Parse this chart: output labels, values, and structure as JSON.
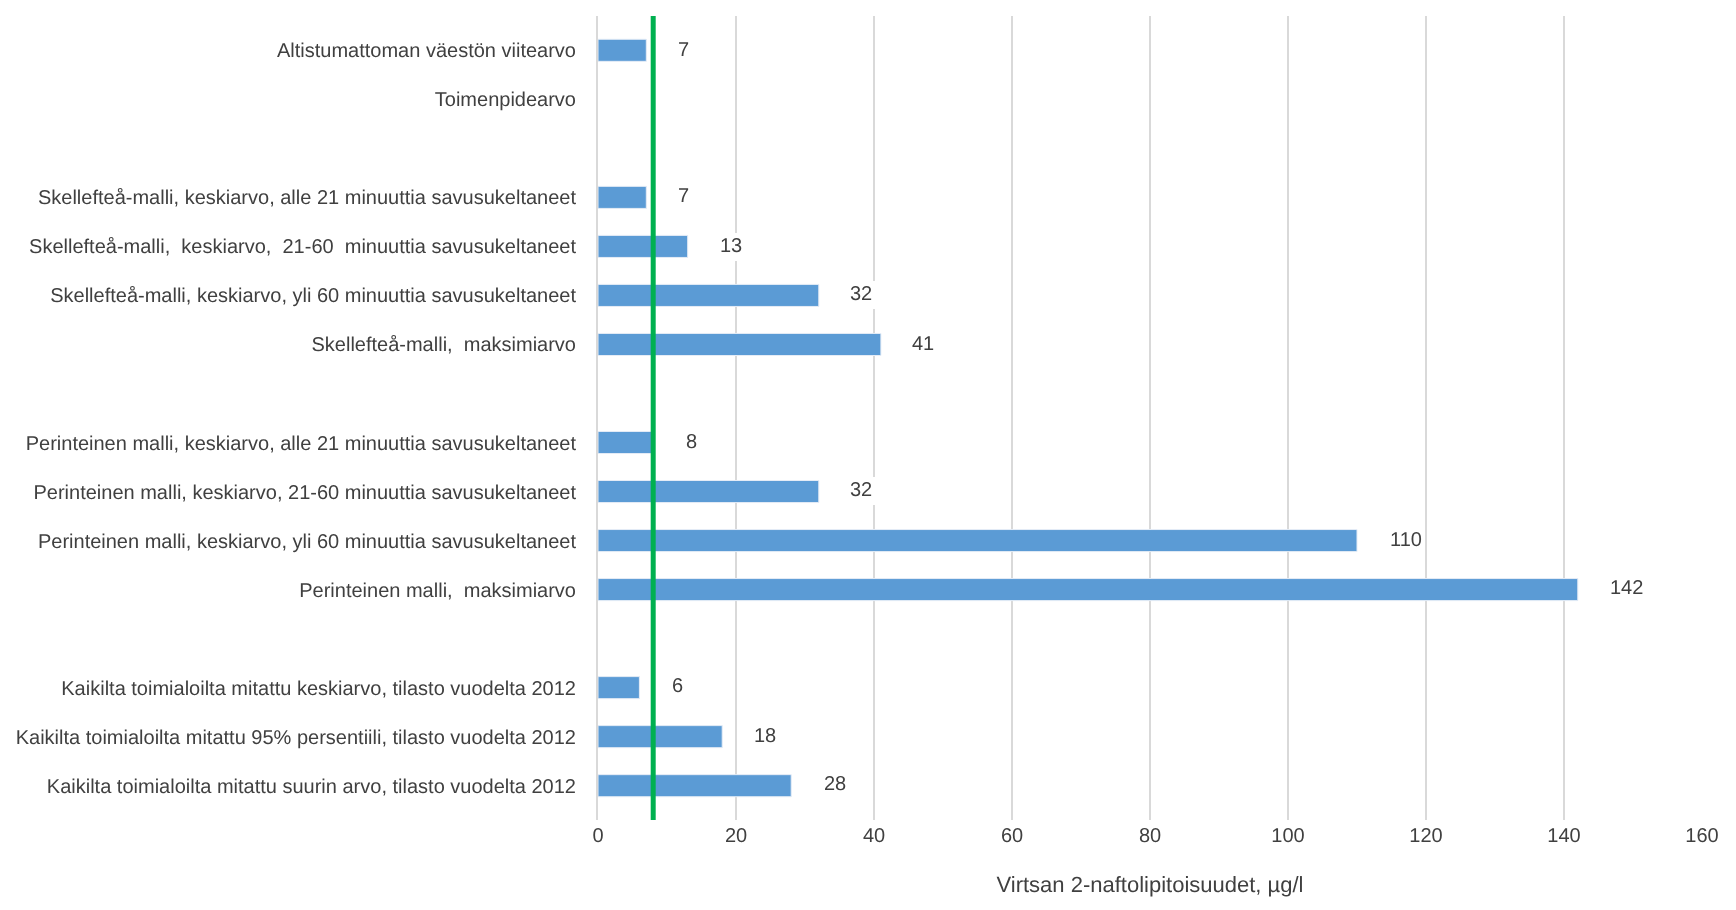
{
  "chart_data": {
    "type": "bar",
    "orientation": "horizontal",
    "xlabel": "Virtsan 2-naftolipitoisuudet, µg/l",
    "categories": [
      "Altistumattoman väestön viitearvo",
      "Toimenpidearvo",
      null,
      "Skellefteå-malli, keskiarvo, alle 21 minuuttia savusukeltaneet",
      "Skellefteå-malli,  keskiarvo,  21-60  minuuttia savusukeltaneet",
      "Skellefteå-malli, keskiarvo, yli 60 minuuttia savusukeltaneet",
      "Skellefteå-malli,  maksimiarvo",
      null,
      "Perinteinen malli, keskiarvo, alle 21 minuuttia savusukeltaneet",
      "Perinteinen malli, keskiarvo, 21-60 minuuttia savusukeltaneet",
      "Perinteinen malli, keskiarvo, yli 60 minuuttia savusukeltaneet",
      "Perinteinen malli,  maksimiarvo",
      null,
      "Kaikilta toimialoilta mitattu keskiarvo, tilasto vuodelta 2012",
      "Kaikilta toimialoilta mitattu 95% persentiili, tilasto vuodelta 2012",
      "Kaikilta toimialoilta mitattu suurin arvo, tilasto vuodelta 2012"
    ],
    "values": [
      7,
      null,
      null,
      7,
      13,
      32,
      41,
      null,
      8,
      32,
      110,
      142,
      null,
      6,
      18,
      28
    ],
    "color": "#5b9bd5",
    "data_labels": true,
    "xlim": [
      0,
      160
    ],
    "xticks": [
      0,
      20,
      40,
      60,
      80,
      100,
      120,
      140,
      160
    ],
    "grid": "x",
    "ref_lines": [
      {
        "axis": "x",
        "value": 8,
        "color": "#00b050"
      }
    ]
  }
}
